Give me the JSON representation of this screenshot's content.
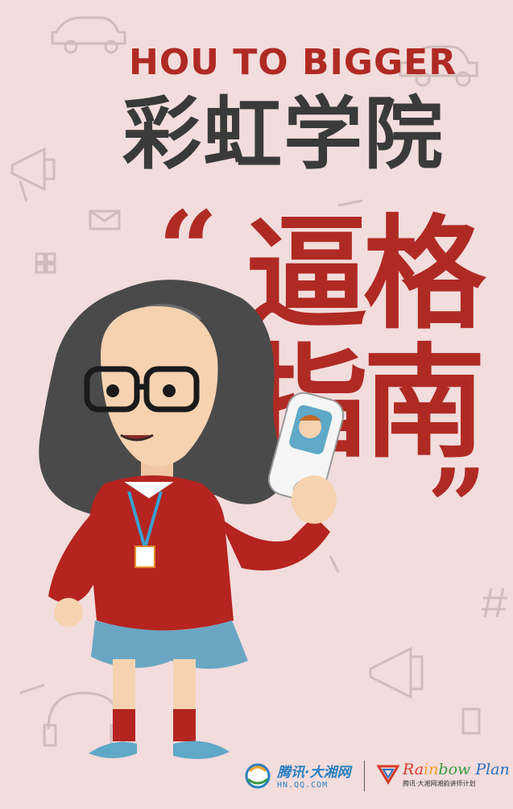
{
  "header": {
    "en_title": "HOU TO BIGGER",
    "cn_title": "彩虹学院"
  },
  "headline": {
    "quote_open": "“",
    "line1": "逼格",
    "line2": "指南",
    "quote_close": "”"
  },
  "footer": {
    "logo1_cn": "腾讯·大湘网",
    "logo1_url": "HN.QQ.COM",
    "logo2_en": [
      "Ra",
      "in",
      "bow",
      " Plan"
    ],
    "logo2_sub": "腾讯·大湘网湘韵讲师计划"
  },
  "colors": {
    "background": "#f2dcdc",
    "accent_red": "#b02a24",
    "title_gray": "#3a3a3a"
  }
}
